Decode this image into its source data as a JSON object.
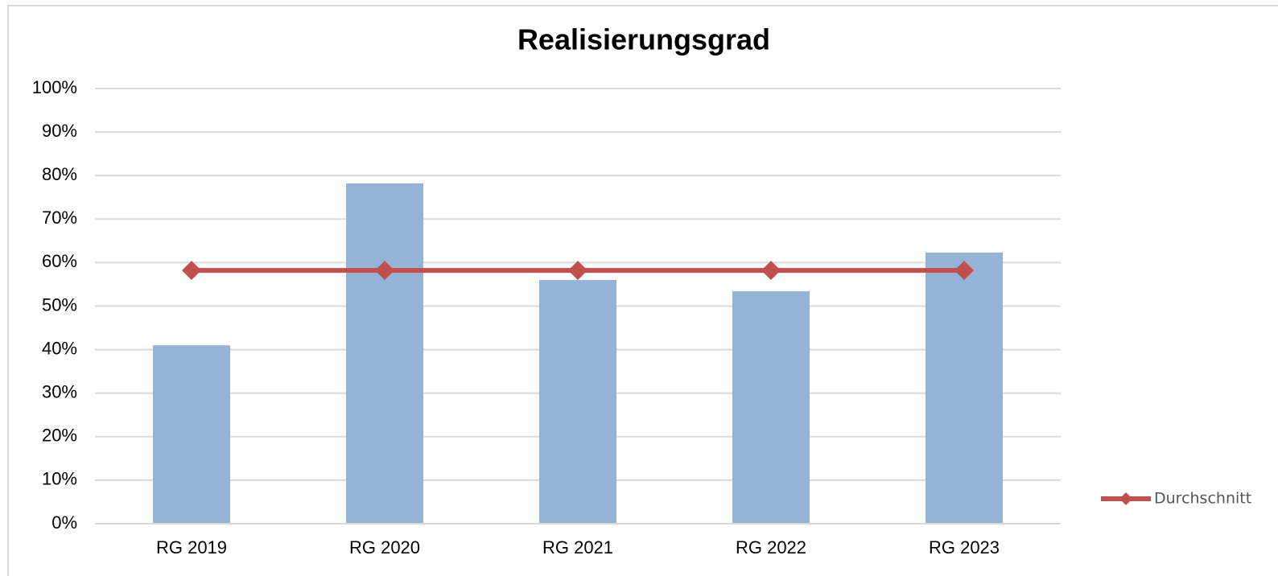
{
  "chart_data": {
    "type": "combo",
    "title": "Realisierungsgrad",
    "categories": [
      "RG 2019",
      "RG 2020",
      "RG 2021",
      "RG 2022",
      "RG 2023"
    ],
    "series": [
      {
        "type": "bar",
        "color": "#95b3d7",
        "values": [
          41,
          78.2,
          56,
          53.4,
          62.3
        ]
      },
      {
        "type": "line",
        "name": "Durchschnitt",
        "color": "#c0504d",
        "values": [
          58.2,
          58.2,
          58.2,
          58.2,
          58.2
        ]
      }
    ],
    "ylim": [
      0,
      100
    ],
    "yticks": [
      {
        "value": 0,
        "label": "0%"
      },
      {
        "value": 10,
        "label": "10%"
      },
      {
        "value": 20,
        "label": "20%"
      },
      {
        "value": 30,
        "label": "30%"
      },
      {
        "value": 40,
        "label": "40%"
      },
      {
        "value": 50,
        "label": "50%"
      },
      {
        "value": 60,
        "label": "60%"
      },
      {
        "value": 70,
        "label": "70%"
      },
      {
        "value": 80,
        "label": "80%"
      },
      {
        "value": 90,
        "label": "90%"
      },
      {
        "value": 100,
        "label": "100%"
      }
    ],
    "grid": true,
    "legend": "right"
  }
}
